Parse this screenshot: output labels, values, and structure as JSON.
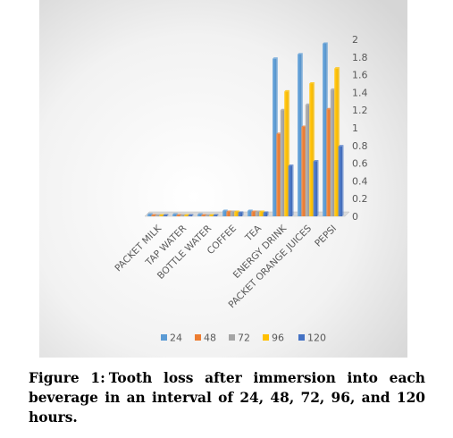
{
  "chart_data": {
    "type": "bar",
    "categories": [
      "PACKET MILK",
      "TAP WATER",
      "BOTTLE WATER",
      "COFFEE",
      "TEA",
      "ENERGY DRINK",
      "PACKET ORANGE JUICES",
      "PEPSI"
    ],
    "series": [
      {
        "name": "24",
        "color": "#5B9BD5",
        "values": [
          0.02,
          0.02,
          0.02,
          0.06,
          0.06,
          1.78,
          1.83,
          1.95
        ]
      },
      {
        "name": "48",
        "color": "#ED7D31",
        "values": [
          0.01,
          0.01,
          0.01,
          0.05,
          0.05,
          0.93,
          1.01,
          1.21
        ]
      },
      {
        "name": "72",
        "color": "#A5A5A5",
        "values": [
          0.01,
          0.01,
          0.01,
          0.05,
          0.05,
          1.2,
          1.26,
          1.43
        ]
      },
      {
        "name": "96",
        "color": "#FFC000",
        "values": [
          0.01,
          0.01,
          0.01,
          0.05,
          0.05,
          1.41,
          1.5,
          1.67
        ]
      },
      {
        "name": "120",
        "color": "#4472C4",
        "values": [
          0.01,
          0.01,
          0.01,
          0.04,
          0.04,
          0.57,
          0.62,
          0.79
        ]
      }
    ],
    "y_ticks": [
      "0",
      "0.2",
      "0.4",
      "0.6",
      "0.8",
      "1",
      "1.2",
      "1.4",
      "1.6",
      "1.8",
      "2"
    ],
    "ylim": [
      0,
      2
    ],
    "y_axis_side": "right",
    "grid": false,
    "legend_position": "bottom",
    "title": "",
    "xlabel": "",
    "ylabel": ""
  },
  "caption": {
    "label": "Figure 1:",
    "text": "Tooth loss after immersion into each beverage in an interval of 24, 48, 72, 96, and 120 hours."
  }
}
